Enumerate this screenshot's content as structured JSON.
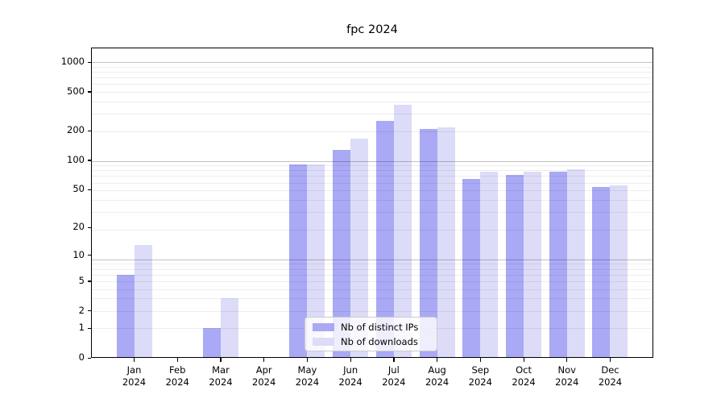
{
  "chart_data": {
    "type": "bar",
    "title": "fpc 2024",
    "categories": [
      "Jan 2024",
      "Feb 2024",
      "Mar 2024",
      "Apr 2024",
      "May 2024",
      "Jun 2024",
      "Jul 2024",
      "Aug 2024",
      "Sep 2024",
      "Oct 2024",
      "Nov 2024",
      "Dec 2024"
    ],
    "series": [
      {
        "name": "Nb of distinct IPs",
        "color": "#a9a9f5",
        "values": [
          6,
          0,
          1,
          0,
          91,
          128,
          253,
          209,
          65,
          71,
          76,
          53
        ]
      },
      {
        "name": "Nb of downloads",
        "color": "#dcdcf8",
        "values": [
          13,
          0,
          3,
          0,
          91,
          168,
          370,
          219,
          76,
          77,
          81,
          55
        ]
      }
    ],
    "yscale": "log1p",
    "yticks": [
      0,
      1,
      2,
      5,
      10,
      20,
      50,
      100,
      200,
      500,
      1000
    ],
    "ylim": [
      0,
      1400
    ],
    "grid": "both",
    "legend_position": "lower center"
  }
}
